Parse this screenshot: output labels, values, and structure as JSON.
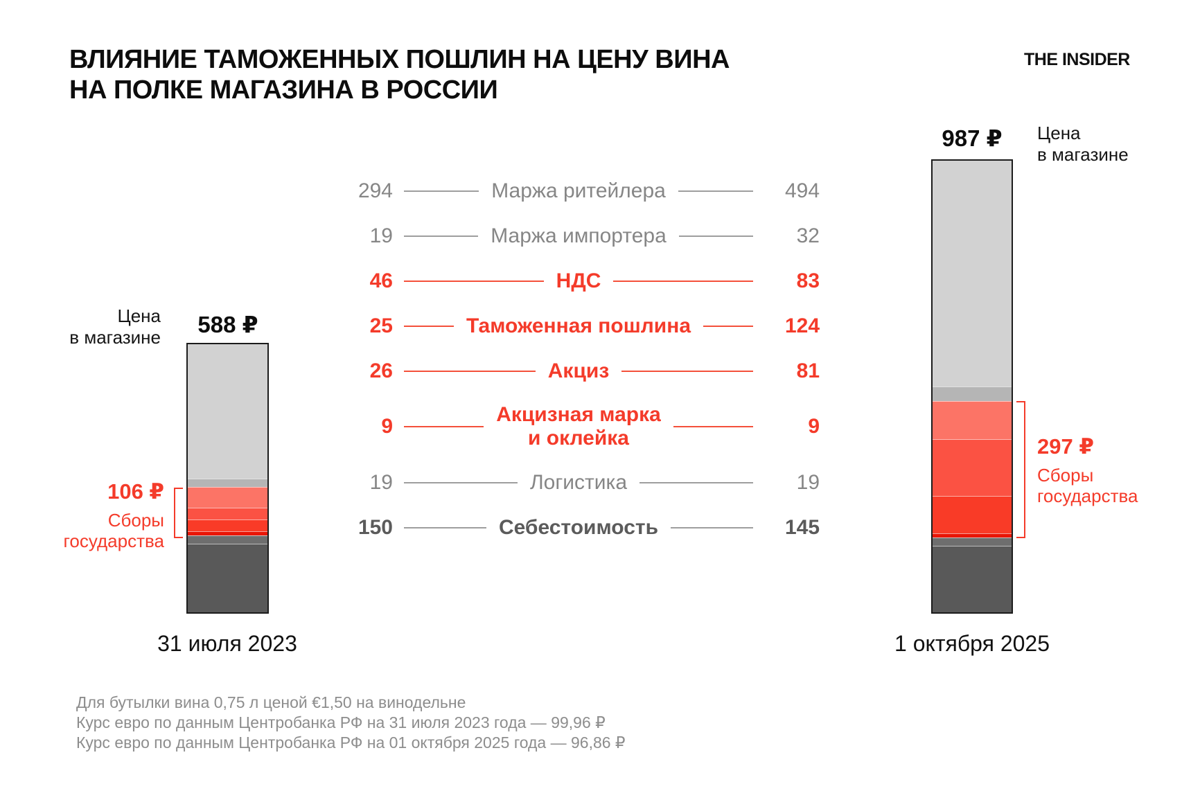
{
  "title_line1": "ВЛИЯНИЕ ТАМОЖЕННЫХ ПОШЛИН НА ЦЕНУ ВИНА",
  "title_line2": "НА ПОЛКЕ МАГАЗИНА В РОССИИ",
  "title": "ВЛИЯНИЕ ТАМОЖЕННЫХ ПОШЛИН НА ЦЕНУ ВИНА\nНА ПОЛКЕ МАГАЗИНА В РОССИИ",
  "logo": "THE INSIDER",
  "chart_data": {
    "type": "bar",
    "stacked": true,
    "title": "Влияние таможенных пошлин на цену вина на полке магазина в России",
    "categories": [
      "31 июля 2023",
      "1 октября 2025"
    ],
    "totals": [
      588,
      987
    ],
    "legend_position": "center",
    "series": [
      {
        "name": "Маржа ритейлера",
        "values": [
          294,
          494
        ],
        "color": "#d2d2d2",
        "text_style": "gray"
      },
      {
        "name": "Маржа импортера",
        "values": [
          19,
          32
        ],
        "color": "#b5b5b5",
        "text_style": "gray"
      },
      {
        "name": "НДС",
        "values": [
          46,
          83
        ],
        "color": "#fc7466",
        "text_style": "red"
      },
      {
        "name": "Таможенная пошлина",
        "values": [
          25,
          124
        ],
        "color": "#fb5243",
        "text_style": "red"
      },
      {
        "name": "Акциз",
        "values": [
          26,
          81
        ],
        "color": "#f93b27",
        "text_style": "red"
      },
      {
        "name": "Акцизная марка и оклейка",
        "values": [
          9,
          9
        ],
        "color": "#e91505",
        "text_style": "red"
      },
      {
        "name": "Логистика",
        "values": [
          19,
          19
        ],
        "color": "#6e6e6e",
        "text_style": "gray"
      },
      {
        "name": "Себестоимость",
        "values": [
          150,
          145
        ],
        "color": "#595959",
        "text_style": "dark"
      }
    ],
    "state_fees": [
      {
        "category": "31 июля 2023",
        "value": "106 ₽",
        "components_sum": 106
      },
      {
        "category": "1 октября 2025",
        "value": "297 ₽",
        "components_sum": 297
      }
    ]
  },
  "legend": {
    "rows": [
      {
        "left": "294",
        "label": "Маржа ритейлера",
        "right": "494",
        "style": "gray"
      },
      {
        "left": "19",
        "label": "Маржа импортера",
        "right": "32",
        "style": "gray"
      },
      {
        "left": "46",
        "label": "НДС",
        "right": "83",
        "style": "red"
      },
      {
        "left": "25",
        "label": "Таможенная пошлина",
        "right": "124",
        "style": "red"
      },
      {
        "left": "26",
        "label": "Акциз",
        "right": "81",
        "style": "red"
      },
      {
        "left": "9",
        "label": "Акцизная марка\nи оклейка",
        "right": "9",
        "style": "red"
      },
      {
        "left": "19",
        "label": "Логистика",
        "right": "19",
        "style": "gray"
      },
      {
        "left": "150",
        "label": "Себестоимость",
        "right": "145",
        "style": "dark"
      }
    ]
  },
  "left_bar": {
    "total": "588 ₽",
    "side_label": "Цена\nв магазине",
    "date": "31 июля 2023",
    "fees_value": "106 ₽",
    "fees_label": "Сборы\nгосударства"
  },
  "right_bar": {
    "total": "987 ₽",
    "side_label": "Цена\nв магазине",
    "date": "1 октября 2025",
    "fees_value": "297 ₽",
    "fees_label": "Сборы\nгосударства"
  },
  "footnotes": [
    "Для бутылки вина 0,75 л ценой €1,50 на винодельне",
    "Курс евро по данным Центробанка РФ на 31 июля 2023 года — 99,96 ₽",
    "Курс евро по данным Центробанка РФ на 01 октября 2025 года — 96,86 ₽"
  ],
  "colors": {
    "accent_red": "#f43b2a",
    "bar_border": "#1c1c1c",
    "gray_text": "#868686",
    "dark_text": "#5b5b5b",
    "footnote_gray": "#8d8d8d"
  }
}
